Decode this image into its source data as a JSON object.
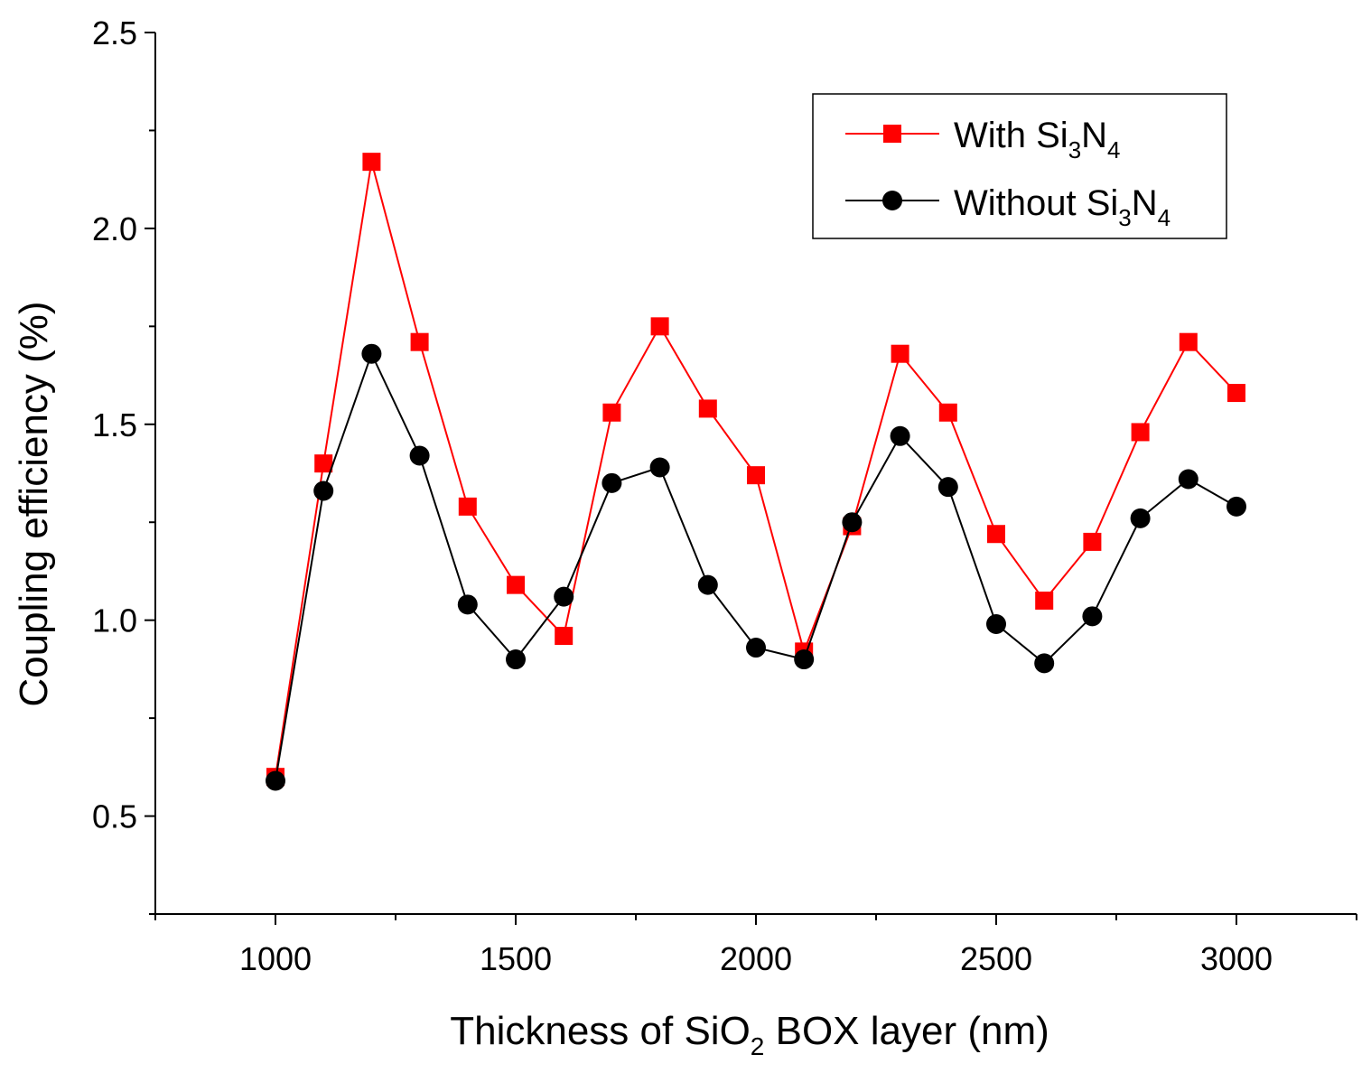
{
  "chart_data": {
    "type": "line",
    "xlabel": {
      "pre": "Thickness of SiO",
      "sub": "2",
      "post": " BOX layer (nm)"
    },
    "ylabel": "Coupling efficiency (%)",
    "xlim": [
      750,
      3250
    ],
    "ylim": [
      0.25,
      2.5
    ],
    "xticks": [
      1000,
      1500,
      2000,
      2500,
      3000
    ],
    "xtick_labels": [
      "1000",
      "1500",
      "2000",
      "2500",
      "3000"
    ],
    "yticks": [
      0.5,
      1.0,
      1.5,
      2.0,
      2.5
    ],
    "ytick_labels": [
      "0.5",
      "1.0",
      "1.5",
      "2.0",
      "2.5"
    ],
    "grid": false,
    "legend_position": "top-right",
    "x": [
      1000,
      1100,
      1200,
      1300,
      1400,
      1500,
      1600,
      1700,
      1800,
      1900,
      2000,
      2100,
      2200,
      2300,
      2400,
      2500,
      2600,
      2700,
      2800,
      2900,
      3000
    ],
    "series": [
      {
        "name": {
          "t1": "With Si",
          "s1": "3",
          "t2": "N",
          "s2": "4"
        },
        "color": "#ff0000",
        "marker": "square",
        "values": [
          0.6,
          1.4,
          2.17,
          1.71,
          1.29,
          1.09,
          0.96,
          1.53,
          1.75,
          1.54,
          1.37,
          0.92,
          1.24,
          1.68,
          1.53,
          1.22,
          1.05,
          1.2,
          1.48,
          1.71,
          1.58
        ]
      },
      {
        "name": {
          "t1": "Without Si",
          "s1": "3",
          "t2": "N",
          "s2": "4"
        },
        "color": "#000000",
        "marker": "circle",
        "values": [
          0.59,
          1.33,
          1.68,
          1.42,
          1.04,
          0.9,
          1.06,
          1.35,
          1.39,
          1.09,
          0.93,
          0.9,
          1.25,
          1.47,
          1.34,
          0.99,
          0.89,
          1.01,
          1.26,
          1.36,
          1.29
        ]
      }
    ]
  }
}
